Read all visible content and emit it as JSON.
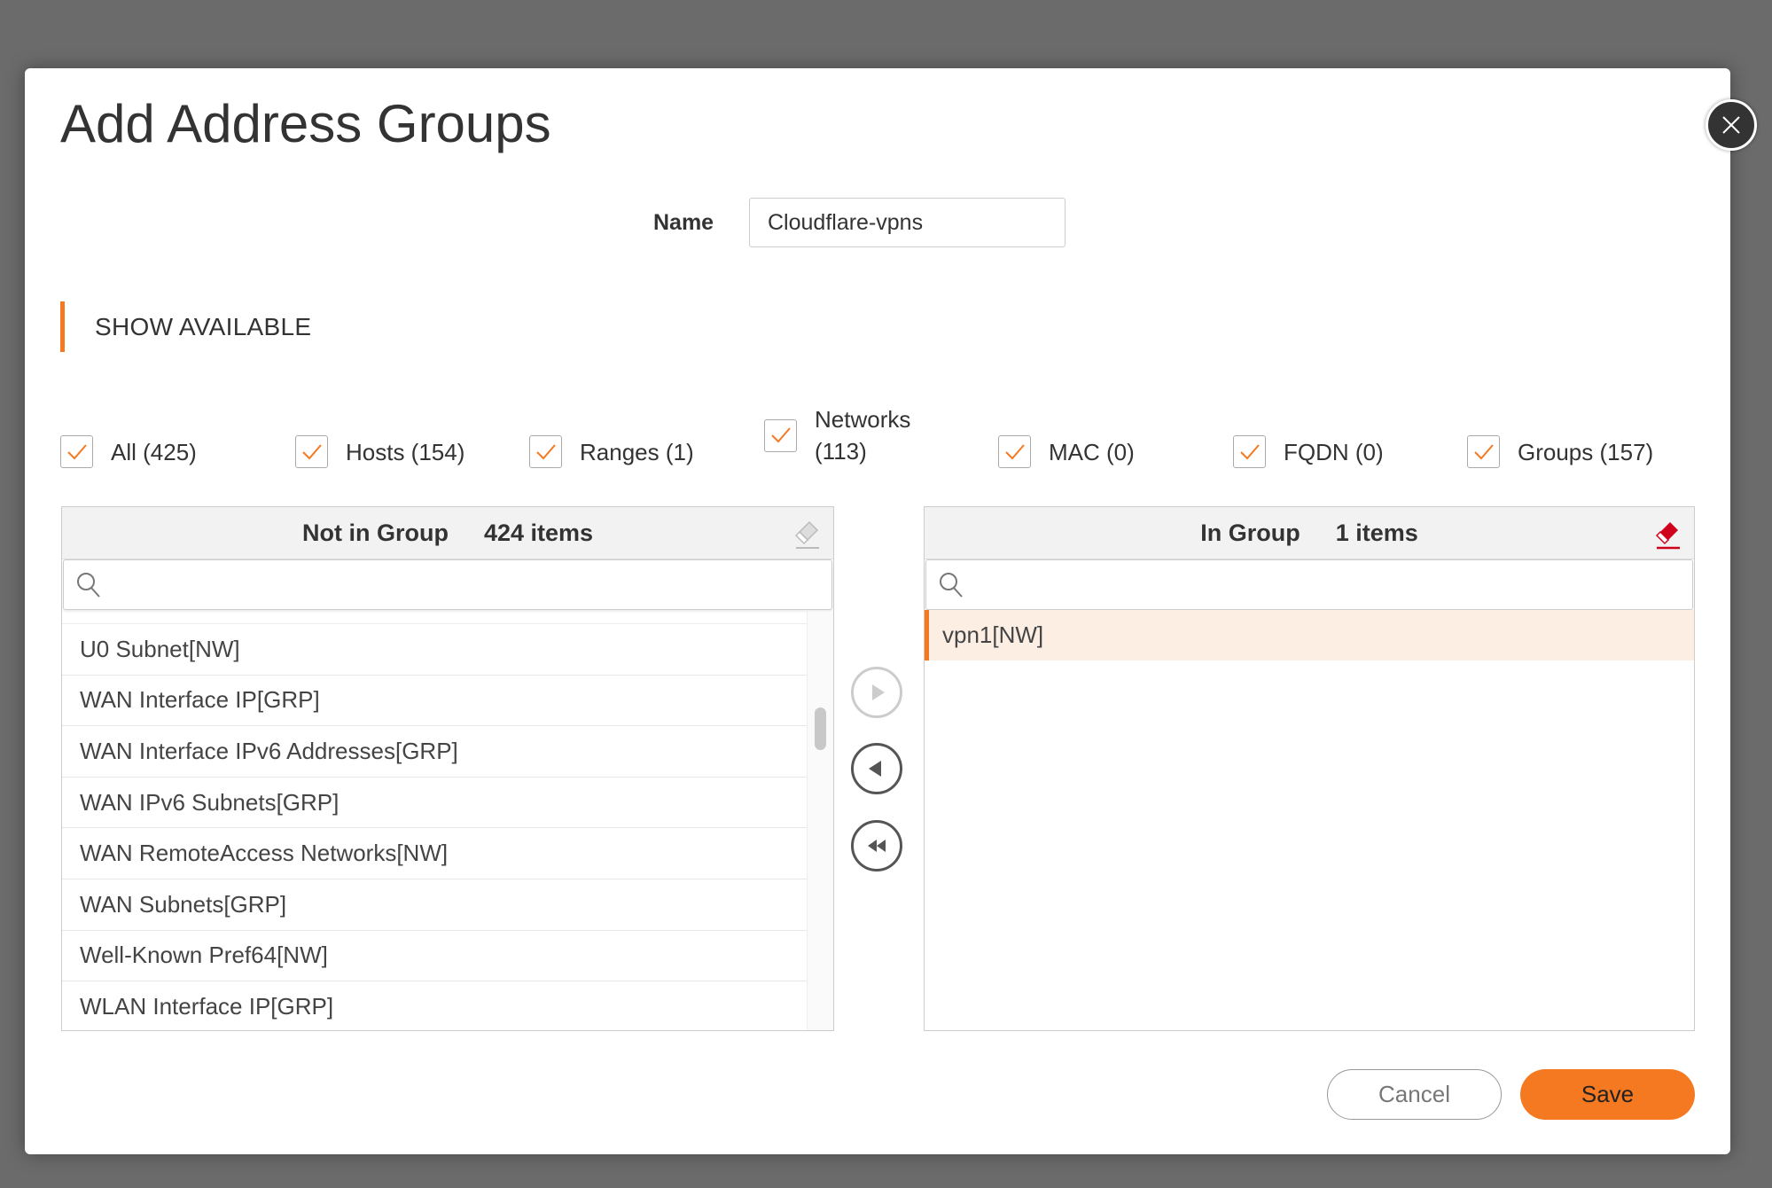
{
  "dialog": {
    "title": "Add Address Groups"
  },
  "name": {
    "label": "Name",
    "value": "Cloudflare-vpns"
  },
  "section": {
    "label": "SHOW AVAILABLE"
  },
  "filters": [
    {
      "label": "All (425)",
      "checked": true
    },
    {
      "label": "Hosts (154)",
      "checked": true
    },
    {
      "label": "Ranges (1)",
      "checked": true
    },
    {
      "label": "Networks",
      "label2": "(113)",
      "checked": true
    },
    {
      "label": "MAC (0)",
      "checked": true
    },
    {
      "label": "FQDN (0)",
      "checked": true
    },
    {
      "label": "Groups (157)",
      "checked": true
    }
  ],
  "not_in_group": {
    "title": "Not in Group",
    "count": "424 items",
    "search_placeholder": "",
    "items": [
      "U0 Subnet[NW]",
      "WAN Interface IP[GRP]",
      "WAN Interface IPv6 Addresses[GRP]",
      "WAN IPv6 Subnets[GRP]",
      "WAN RemoteAccess Networks[NW]",
      "WAN Subnets[GRP]",
      "Well-Known Pref64[NW]",
      "WLAN Interface IP[GRP]"
    ]
  },
  "in_group": {
    "title": "In Group",
    "count": "1 items",
    "search_placeholder": "",
    "items": [
      "vpn1[NW]"
    ]
  },
  "buttons": {
    "cancel": "Cancel",
    "save": "Save"
  },
  "colors": {
    "accent": "#f47920",
    "eraser_active": "#d0021b",
    "selected_row": "#fdeee4"
  }
}
